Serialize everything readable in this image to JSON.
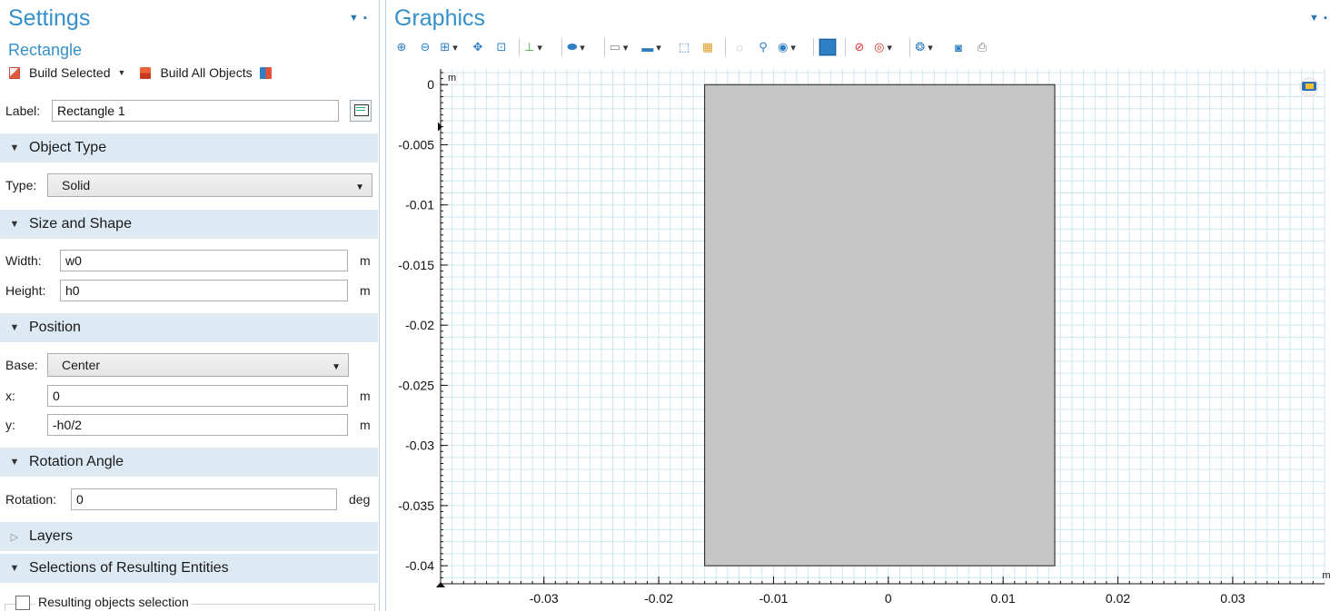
{
  "settings": {
    "title": "Settings",
    "subtitle": "Rectangle",
    "toolbar": {
      "build_selected": "Build Selected",
      "build_all": "Build All Objects"
    },
    "label_field": {
      "label": "Label:",
      "value": "Rectangle 1"
    },
    "sections": {
      "object_type": "Object Type",
      "size_shape": "Size and Shape",
      "position": "Position",
      "rotation": "Rotation Angle",
      "layers": "Layers",
      "selections": "Selections of Resulting Entities"
    },
    "type": {
      "label": "Type:",
      "value": "Solid"
    },
    "width": {
      "label": "Width:",
      "value": "w0",
      "unit": "m"
    },
    "height": {
      "label": "Height:",
      "value": "h0",
      "unit": "m"
    },
    "base": {
      "label": "Base:",
      "value": "Center"
    },
    "x": {
      "label": "x:",
      "value": "0",
      "unit": "m"
    },
    "y": {
      "label": "y:",
      "value": "-h0/2",
      "unit": "m"
    },
    "rotation": {
      "label": "Rotation:",
      "value": "0",
      "unit": "deg"
    },
    "resulting_selection": "Resulting objects selection"
  },
  "graphics": {
    "title": "Graphics",
    "toolbar_icons": [
      "zoom-in-icon",
      "zoom-out-icon",
      "zoom-box-icon",
      "zoom-extents-icon",
      "zoom-selected-icon",
      "axis-orientation-icon",
      "render-mode-icon",
      "transparency-icon",
      "wireframe-icon",
      "select-box-icon",
      "select-all-icon",
      "hide-icon",
      "show-icon",
      "view-icon",
      "grid-toggle-icon",
      "clear-selection-icon",
      "lights-icon",
      "scene-icon",
      "camera-icon",
      "print-icon"
    ]
  },
  "chart_data": {
    "type": "geometry",
    "x_unit": "m",
    "y_unit": "m",
    "xlim": [
      -0.039,
      0.038
    ],
    "ylim": [
      -0.0415,
      0.0013
    ],
    "x_ticks": [
      -0.03,
      -0.02,
      -0.01,
      0,
      0.01,
      0.02,
      0.03
    ],
    "x_tick_labels": [
      "-0.03",
      "-0.02",
      "-0.01",
      "0",
      "0.01",
      "0.02",
      "0.03"
    ],
    "y_ticks": [
      0,
      -0.005,
      -0.01,
      -0.015,
      -0.02,
      -0.025,
      -0.03,
      -0.035,
      -0.04
    ],
    "y_tick_labels": [
      "0",
      "-0.005",
      "-0.01",
      "-0.015",
      "-0.02",
      "-0.025",
      "-0.03",
      "-0.035",
      "-0.04"
    ],
    "grid": true,
    "rectangle": {
      "x_min": -0.016,
      "x_max": 0.0145,
      "y_min": -0.04,
      "y_max": 0
    },
    "colors": {
      "shape_fill": "#c6c6c6",
      "shape_edge": "#1a1a1a",
      "grid": "#cfe6ef"
    }
  }
}
